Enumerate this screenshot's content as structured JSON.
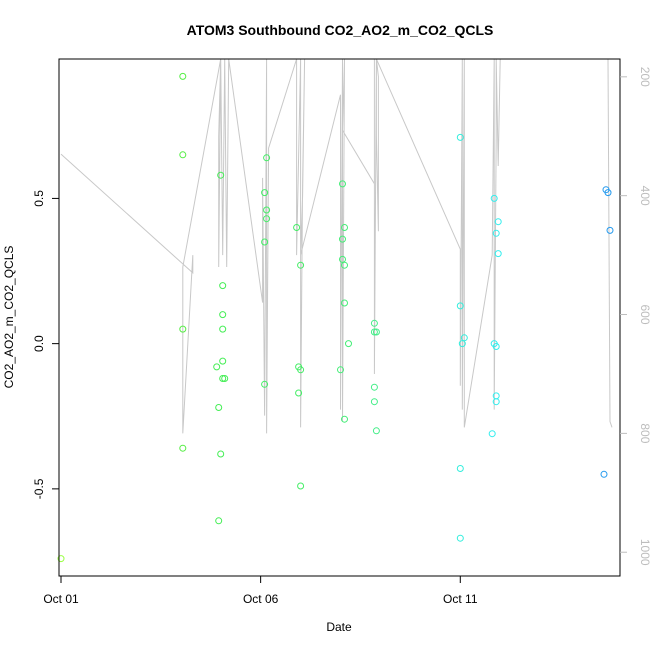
{
  "chart_data": {
    "type": "scatter",
    "title": "ATOM3 Southbound CO2_AO2_m_CO2_QCLS",
    "xlabel": "Date",
    "ylabel": "CO2_AO2_m_CO2_QCLS",
    "x_ticks": [
      {
        "day": 1,
        "label": "Oct 01"
      },
      {
        "day": 6,
        "label": "Oct 06"
      },
      {
        "day": 11,
        "label": "Oct 11"
      }
    ],
    "y_ticks": [
      -0.5,
      0.0,
      0.5
    ],
    "y_tick_labels": [
      "-0.5",
      "0.0",
      "0.5"
    ],
    "y_right_ticks": [
      200,
      400,
      600,
      800,
      1000
    ],
    "y_right_tick_labels": [
      "200",
      "400",
      "600",
      "800",
      "1000"
    ],
    "xlim": [
      0.95,
      15.0
    ],
    "ylim": [
      -0.8,
      0.98
    ],
    "y_right_lim": [
      170,
      1040
    ],
    "points": [
      {
        "x": 1.0,
        "y": -0.74,
        "color": "#9aff44"
      },
      {
        "x": 4.05,
        "y": 0.92,
        "color": "#55ee44"
      },
      {
        "x": 4.05,
        "y": 0.65,
        "color": "#55ee44"
      },
      {
        "x": 4.05,
        "y": 0.05,
        "color": "#55ee44"
      },
      {
        "x": 4.05,
        "y": -0.36,
        "color": "#55ee44"
      },
      {
        "x": 4.9,
        "y": -0.08,
        "color": "#44ee55"
      },
      {
        "x": 4.95,
        "y": -0.22,
        "color": "#44ee55"
      },
      {
        "x": 4.95,
        "y": -0.61,
        "color": "#44ee55"
      },
      {
        "x": 5.0,
        "y": 0.58,
        "color": "#44ee55"
      },
      {
        "x": 5.0,
        "y": -0.38,
        "color": "#44ee55"
      },
      {
        "x": 5.05,
        "y": 0.2,
        "color": "#44ee55"
      },
      {
        "x": 5.05,
        "y": 0.1,
        "color": "#44ee55"
      },
      {
        "x": 5.05,
        "y": 0.05,
        "color": "#44ee55"
      },
      {
        "x": 5.05,
        "y": -0.06,
        "color": "#44ee55"
      },
      {
        "x": 5.05,
        "y": -0.12,
        "color": "#44ee55"
      },
      {
        "x": 5.1,
        "y": -0.12,
        "color": "#44ee55"
      },
      {
        "x": 6.1,
        "y": 0.52,
        "color": "#44ee66"
      },
      {
        "x": 6.15,
        "y": 0.46,
        "color": "#44ee66"
      },
      {
        "x": 6.15,
        "y": 0.43,
        "color": "#44ee66"
      },
      {
        "x": 6.1,
        "y": 0.35,
        "color": "#44ee66"
      },
      {
        "x": 6.15,
        "y": 0.64,
        "color": "#44ee66"
      },
      {
        "x": 6.1,
        "y": -0.14,
        "color": "#44ee66"
      },
      {
        "x": 6.9,
        "y": 0.4,
        "color": "#44ee66"
      },
      {
        "x": 7.0,
        "y": 0.27,
        "color": "#44ee66"
      },
      {
        "x": 6.95,
        "y": -0.08,
        "color": "#44ee66"
      },
      {
        "x": 7.0,
        "y": -0.09,
        "color": "#44ee66"
      },
      {
        "x": 6.95,
        "y": -0.17,
        "color": "#44ee66"
      },
      {
        "x": 7.0,
        "y": -0.49,
        "color": "#44ee66"
      },
      {
        "x": 8.05,
        "y": 0.55,
        "color": "#44ee77"
      },
      {
        "x": 8.1,
        "y": 0.4,
        "color": "#44ee77"
      },
      {
        "x": 8.05,
        "y": 0.36,
        "color": "#44ee77"
      },
      {
        "x": 8.05,
        "y": 0.29,
        "color": "#44ee77"
      },
      {
        "x": 8.1,
        "y": 0.27,
        "color": "#44ee77"
      },
      {
        "x": 8.1,
        "y": 0.14,
        "color": "#44ee77"
      },
      {
        "x": 8.2,
        "y": 0.0,
        "color": "#44ee77"
      },
      {
        "x": 8.0,
        "y": -0.09,
        "color": "#44ee77"
      },
      {
        "x": 8.1,
        "y": -0.26,
        "color": "#44ee77"
      },
      {
        "x": 8.85,
        "y": 0.07,
        "color": "#44ee88"
      },
      {
        "x": 8.85,
        "y": 0.04,
        "color": "#44ee88"
      },
      {
        "x": 8.9,
        "y": 0.04,
        "color": "#44ee88"
      },
      {
        "x": 8.85,
        "y": -0.15,
        "color": "#44ee88"
      },
      {
        "x": 8.85,
        "y": -0.2,
        "color": "#44ee88"
      },
      {
        "x": 8.9,
        "y": -0.3,
        "color": "#44ee88"
      },
      {
        "x": 11.0,
        "y": 0.71,
        "color": "#33eedd"
      },
      {
        "x": 11.0,
        "y": 0.13,
        "color": "#33eedd"
      },
      {
        "x": 11.1,
        "y": 0.02,
        "color": "#33eedd"
      },
      {
        "x": 11.05,
        "y": 0.0,
        "color": "#33eedd"
      },
      {
        "x": 11.0,
        "y": -0.43,
        "color": "#33eedd"
      },
      {
        "x": 11.0,
        "y": -0.67,
        "color": "#33eedd"
      },
      {
        "x": 11.85,
        "y": 0.5,
        "color": "#33eeee"
      },
      {
        "x": 11.95,
        "y": 0.42,
        "color": "#33eeee"
      },
      {
        "x": 11.9,
        "y": 0.38,
        "color": "#33eeee"
      },
      {
        "x": 11.95,
        "y": 0.31,
        "color": "#33eeee"
      },
      {
        "x": 11.85,
        "y": 0.0,
        "color": "#33eeee"
      },
      {
        "x": 11.9,
        "y": -0.01,
        "color": "#33eeee"
      },
      {
        "x": 11.9,
        "y": -0.18,
        "color": "#33eeee"
      },
      {
        "x": 11.9,
        "y": -0.2,
        "color": "#33eeee"
      },
      {
        "x": 11.8,
        "y": -0.31,
        "color": "#33eeee"
      },
      {
        "x": 14.65,
        "y": 0.53,
        "color": "#2299ee"
      },
      {
        "x": 14.7,
        "y": 0.52,
        "color": "#2299ee"
      },
      {
        "x": 14.75,
        "y": 0.39,
        "color": "#2299ee"
      },
      {
        "x": 14.6,
        "y": -0.45,
        "color": "#2299ee"
      }
    ],
    "altitude_line": {
      "color": "#c8c8c8",
      "points": [
        [
          1.0,
          330
        ],
        [
          4.3,
          530
        ],
        [
          4.3,
          500
        ],
        [
          4.05,
          800
        ],
        [
          4.05,
          520
        ],
        [
          5.0,
          0
        ],
        [
          4.95,
          300
        ],
        [
          4.95,
          520
        ],
        [
          5.0,
          0
        ],
        [
          5.05,
          500
        ],
        [
          5.1,
          0
        ],
        [
          5.15,
          520
        ],
        [
          5.2,
          0
        ],
        [
          6.05,
          580
        ],
        [
          6.05,
          370
        ],
        [
          6.1,
          770
        ],
        [
          6.15,
          0
        ],
        [
          6.15,
          800
        ],
        [
          6.2,
          320
        ],
        [
          6.9,
          0
        ],
        [
          6.9,
          500
        ],
        [
          7.0,
          0
        ],
        [
          7.0,
          790
        ],
        [
          7.05,
          380
        ],
        [
          7.1,
          0
        ],
        [
          7.05,
          400
        ],
        [
          7.0,
          500
        ],
        [
          8.0,
          230
        ],
        [
          8.0,
          760
        ],
        [
          8.05,
          0
        ],
        [
          8.05,
          780
        ],
        [
          8.1,
          0
        ],
        [
          8.05,
          290
        ],
        [
          8.85,
          380
        ],
        [
          8.85,
          0
        ],
        [
          8.85,
          700
        ],
        [
          8.9,
          0
        ],
        [
          8.9,
          300
        ],
        [
          8.95,
          460
        ],
        [
          8.95,
          200
        ],
        [
          8.9,
          0
        ],
        [
          11.0,
          490
        ],
        [
          11.0,
          720
        ],
        [
          11.05,
          0
        ],
        [
          11.05,
          760
        ],
        [
          11.1,
          0
        ],
        [
          11.1,
          790
        ],
        [
          11.8,
          500
        ],
        [
          11.85,
          0
        ],
        [
          11.85,
          760
        ],
        [
          11.9,
          300
        ],
        [
          11.9,
          0
        ],
        [
          11.95,
          350
        ],
        [
          12.0,
          0
        ],
        [
          14.7,
          100
        ],
        [
          14.75,
          780
        ],
        [
          14.8,
          790
        ]
      ]
    }
  }
}
